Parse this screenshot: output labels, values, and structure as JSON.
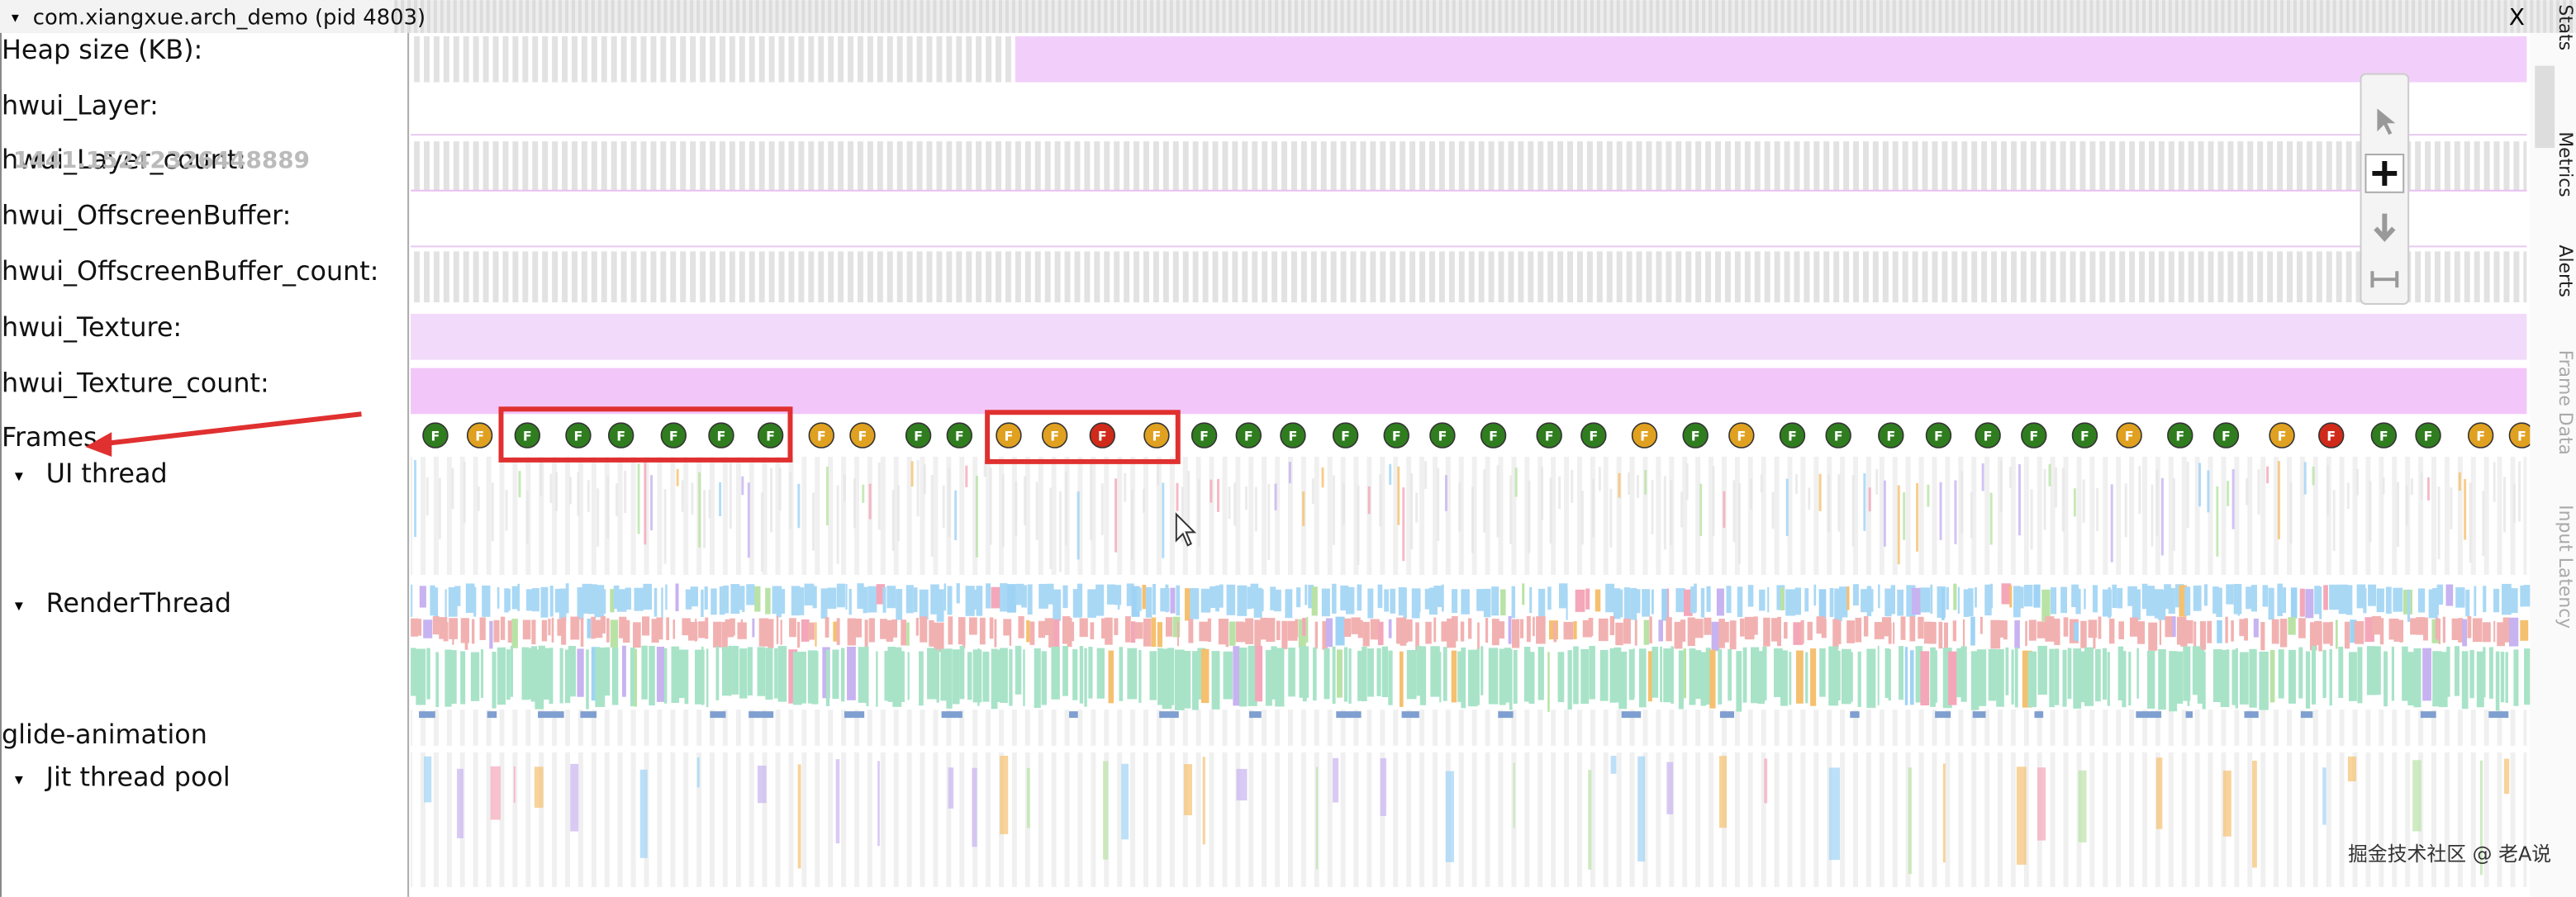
{
  "title": "com.xiangxue.arch_demo (pid 4803)",
  "close": "X",
  "tracks": [
    "Heap size (KB):",
    "hwui_Layer:",
    "hwui_Layer_count:",
    "hwui_OffscreenBuffer:",
    "hwui_OffscreenBuffer_count:",
    "hwui_Texture:",
    "hwui_Texture_count:",
    "Frames",
    "UI thread",
    "RenderThread",
    "glide-animation",
    "Jit thread pool"
  ],
  "overlay_text": "1441.15242326448889",
  "frame_label": "F",
  "frame_status": [
    "good",
    "warn",
    "good",
    "good",
    "good",
    "good",
    "good",
    "good",
    "warn",
    "warn",
    "good",
    "good",
    "warn",
    "warn",
    "bad",
    "warn",
    "good",
    "good",
    "good",
    "good",
    "good",
    "good",
    "good",
    "good",
    "good",
    "warn",
    "good",
    "warn",
    "good",
    "good",
    "good",
    "good",
    "good",
    "good",
    "good",
    "warn",
    "good",
    "good",
    "warn",
    "bad",
    "good",
    "good",
    "warn",
    "warn"
  ],
  "side_tabs": [
    "le Stats",
    "Metrics",
    "Alerts",
    "Frame Data",
    "Input Latency"
  ],
  "watermark": "掘金技术社区 @ 老A说"
}
